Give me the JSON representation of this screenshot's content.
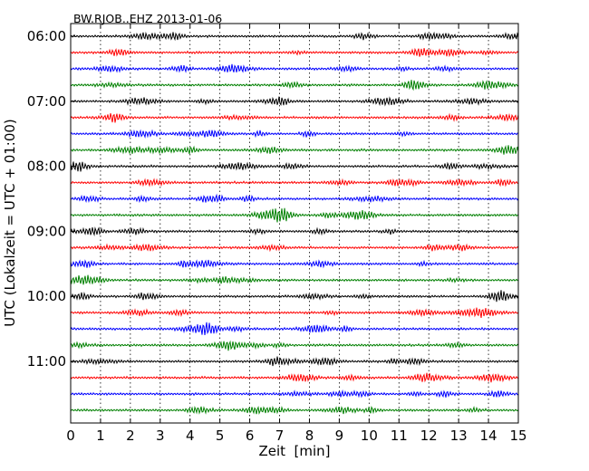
{
  "chart_data": {
    "type": "line",
    "title": "BW.RJOB..EHZ 2013-01-06",
    "xlabel": "Zeit  [min]",
    "ylabel": "UTC (Lokalzeit = UTC + 01:00)",
    "xlim": [
      0,
      15
    ],
    "x_ticks": [
      "0",
      "1",
      "2",
      "3",
      "4",
      "5",
      "6",
      "7",
      "8",
      "9",
      "10",
      "11",
      "12",
      "13",
      "14",
      "15"
    ],
    "y_ticks": [
      "06:00",
      "07:00",
      "08:00",
      "09:00",
      "10:00",
      "11:00"
    ],
    "grid": "vertical dotted at each minute",
    "legend": "none",
    "trace_interval_minutes": 15,
    "trace_colors": [
      "#000000",
      "#ff0000",
      "#0000ff",
      "#008000"
    ],
    "traces": [
      "06:00",
      "06:15",
      "06:30",
      "06:45",
      "07:00",
      "07:15",
      "07:30",
      "07:45",
      "08:00",
      "08:15",
      "08:30",
      "08:45",
      "09:00",
      "09:15",
      "09:30",
      "09:45",
      "10:00",
      "10:15",
      "10:30",
      "10:45",
      "11:00",
      "11:15",
      "11:30",
      "11:45"
    ]
  }
}
